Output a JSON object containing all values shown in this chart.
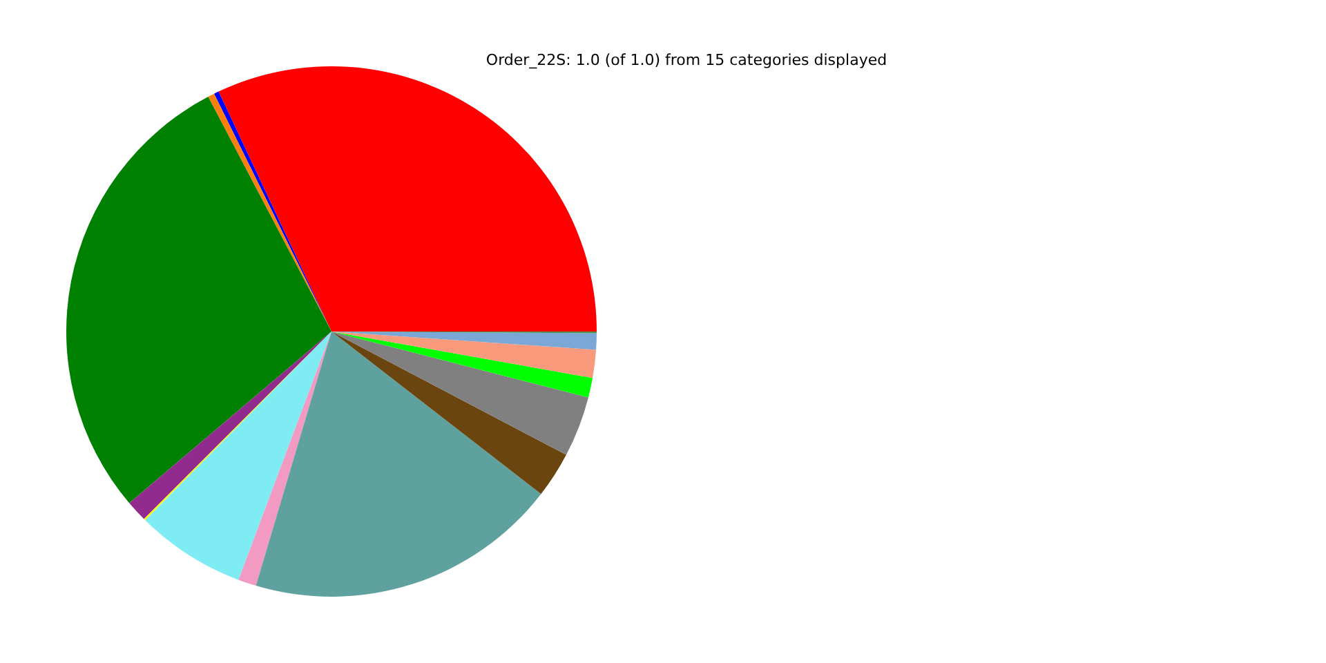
{
  "chart_data": {
    "type": "pie",
    "title": "Order_22S: 1.0 (of 1.0) from 15 categories displayed",
    "categories": [
      null,
      null,
      null,
      null,
      null,
      null,
      null,
      null,
      null,
      null,
      null,
      null,
      null,
      null,
      null
    ],
    "values": [
      32.0,
      0.3,
      0.4,
      28.5,
      1.3,
      0.1,
      6.7,
      1.1,
      19.1,
      2.8,
      3.7,
      1.2,
      1.7,
      1.0,
      0.1
    ],
    "colors": [
      "#ff0000",
      "#0000ff",
      "#ff7f0e",
      "#008000",
      "#912c8e",
      "#ffff00",
      "#7fecf3",
      "#f29ac2",
      "#5fa19e",
      "#6b4510",
      "#808080",
      "#00ff00",
      "#f99a7d",
      "#7ba7d7",
      "#4f8f4f"
    ]
  }
}
